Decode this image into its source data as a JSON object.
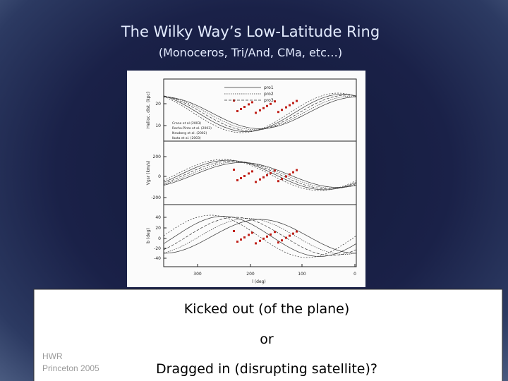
{
  "header": {
    "title": "The Wilky Way’s Low-Latitude Ring",
    "subtitle": "(Monoceros, Tri/And, CMa, etc…)"
  },
  "figure": {
    "panels": [
      {
        "y_label": "Helioc. dist. (kpc)",
        "y_ticks": [
          "20",
          "10"
        ]
      },
      {
        "y_label": "Vgsr (km/s)",
        "y_ticks": [
          "200",
          "0",
          "-200"
        ]
      },
      {
        "y_label": "b (deg)",
        "y_ticks": [
          "40",
          "20",
          "0",
          "-20",
          "-40"
        ]
      }
    ],
    "x_ticks": [
      "300",
      "200",
      "100",
      "0"
    ],
    "x_label": "l (deg)",
    "models": [
      "pro1",
      "pro2",
      "pro3"
    ],
    "sources": [
      "Crane et al (2003)",
      "Rocha-Pinto et al. (2003)",
      "Newberg et al. (2002)",
      "Ibata et al. (2003)"
    ]
  },
  "box": {
    "lines": [
      "Kicked out (of the plane)",
      "or",
      "Dragged in (disrupting satellite)?"
    ]
  },
  "footer": {
    "lines": [
      "HWR",
      "Princeton  2005"
    ]
  }
}
